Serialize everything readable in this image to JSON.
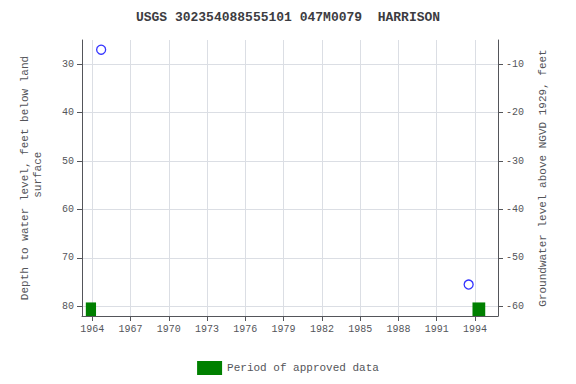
{
  "chart_data": {
    "type": "scatter",
    "title": "USGS 302354088555101 047M0079  HARRISON",
    "xlabel": null,
    "ylabel": "Depth to water level, feet below land\n surface",
    "y2label": "Groundwater level above NGVD 1929, feet",
    "xlim": [
      1963.2,
      1995.8
    ],
    "xticks": [
      1964,
      1967,
      1970,
      1973,
      1976,
      1979,
      1982,
      1985,
      1988,
      1991,
      1994
    ],
    "ylim": [
      82,
      25
    ],
    "yticks": [
      30,
      40,
      50,
      60,
      70,
      80
    ],
    "y2lim": [
      -62,
      -5
    ],
    "y2ticks": [
      -10,
      -20,
      -30,
      -40,
      -50,
      -60
    ],
    "grid": true,
    "legend": "bottom",
    "series": [
      {
        "type": "scatter",
        "color": "blue",
        "marker": "open circle",
        "x": [
          1964.7,
          1993.5
        ],
        "values": [
          27.0,
          75.5
        ]
      },
      {
        "type": "span",
        "name": "Period of approved data",
        "color": "#008000",
        "x_start": [
          1963.5,
          1993.8
        ],
        "x_end": [
          1964.3,
          1994.8
        ],
        "y_top": 79.2,
        "y_bottom": 82.0
      }
    ]
  }
}
